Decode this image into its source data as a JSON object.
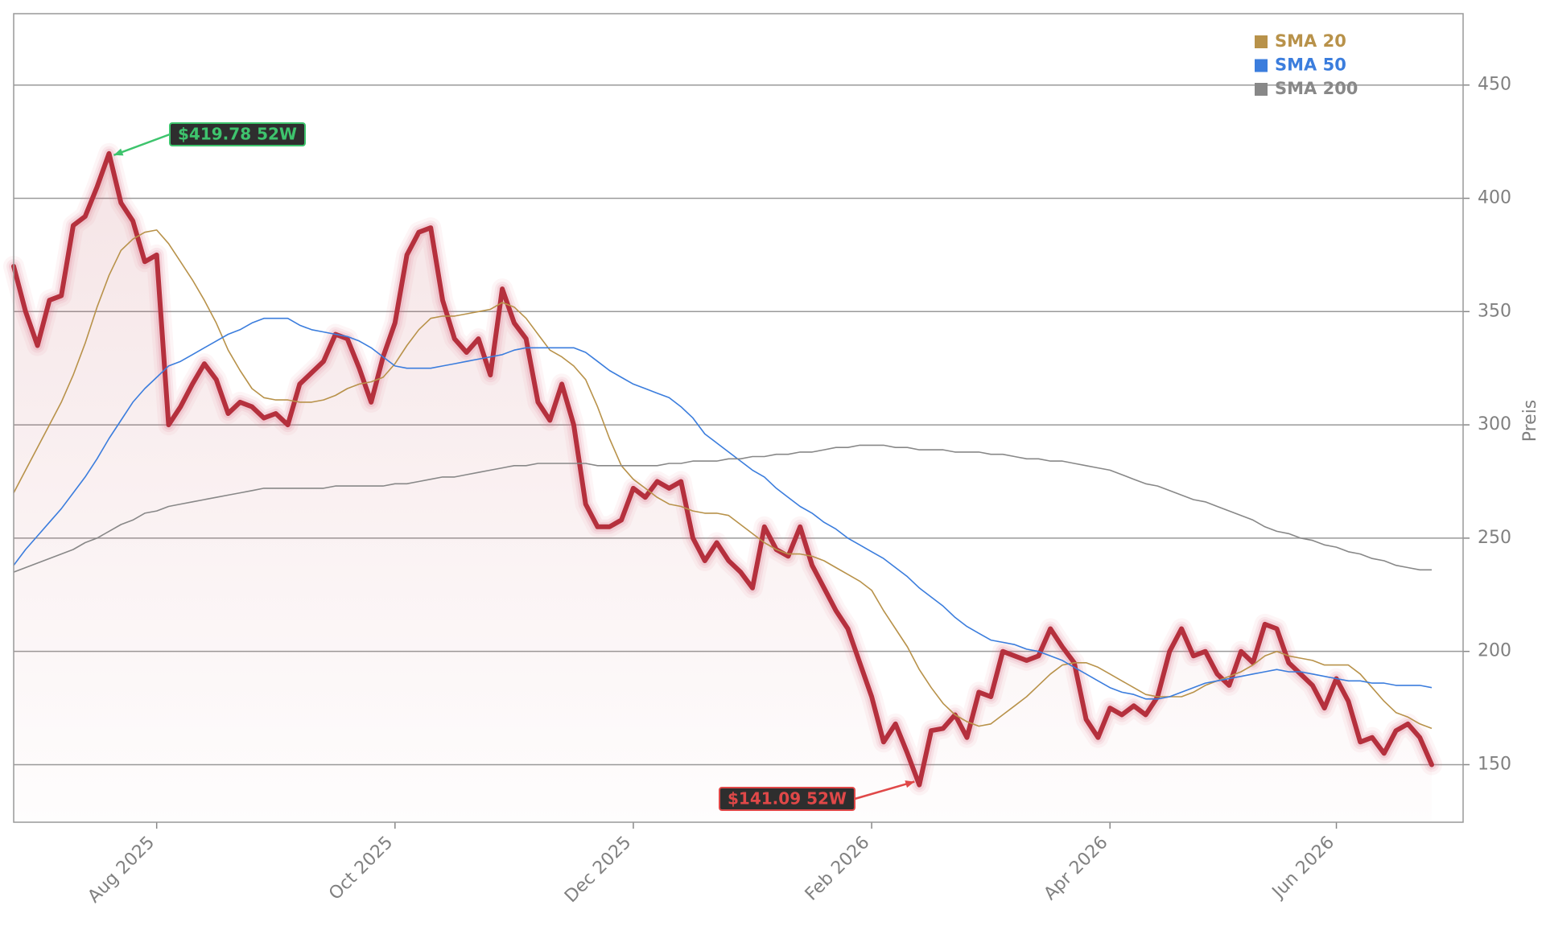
{
  "chart_data": {
    "type": "line",
    "y_label": "Preis",
    "categories": [
      null,
      null,
      null,
      null,
      null,
      null,
      null,
      null,
      null,
      null,
      null,
      null,
      "Aug 2025",
      null,
      null,
      null,
      null,
      null,
      null,
      null,
      null,
      null,
      null,
      null,
      null,
      null,
      null,
      null,
      null,
      null,
      null,
      null,
      "Oct 2025",
      null,
      null,
      null,
      null,
      null,
      null,
      null,
      null,
      null,
      null,
      null,
      null,
      null,
      null,
      null,
      null,
      null,
      null,
      null,
      "Dec 2025",
      null,
      null,
      null,
      null,
      null,
      null,
      null,
      null,
      null,
      null,
      null,
      null,
      null,
      null,
      null,
      null,
      null,
      null,
      null,
      "Feb 2026",
      null,
      null,
      null,
      null,
      null,
      null,
      null,
      null,
      null,
      null,
      null,
      null,
      null,
      null,
      null,
      null,
      null,
      null,
      null,
      "Apr 2026",
      null,
      null,
      null,
      null,
      null,
      null,
      null,
      null,
      null,
      null,
      null,
      null,
      null,
      null,
      null,
      null,
      null,
      null,
      "Jun 2026",
      null,
      null,
      null,
      null,
      null,
      null,
      null,
      null
    ],
    "series": [
      {
        "color": "#b5303d",
        "area": true,
        "values": [
          370,
          350,
          335,
          355,
          357,
          388,
          392,
          405,
          419.78,
          398,
          390,
          372,
          375,
          300,
          308,
          318,
          327,
          320,
          305,
          310,
          308,
          303,
          305,
          300,
          318,
          323,
          328,
          340,
          338,
          325,
          310,
          330,
          345,
          375,
          385,
          387,
          355,
          338,
          332,
          338,
          322,
          360,
          345,
          338,
          310,
          302,
          318,
          300,
          265,
          255,
          255,
          258,
          272,
          268,
          275,
          272,
          275,
          250,
          240,
          248,
          240,
          235,
          228,
          255,
          245,
          242,
          255,
          238,
          228,
          218,
          210,
          195,
          180,
          160,
          168,
          155,
          141.09,
          165,
          166,
          172,
          162,
          182,
          180,
          200,
          198,
          196,
          198,
          210,
          202,
          195,
          170,
          162,
          175,
          172,
          176,
          172,
          180,
          200,
          210,
          198,
          200,
          190,
          185,
          200,
          195,
          212,
          210,
          195,
          190,
          185,
          175,
          188,
          178,
          160,
          162,
          155,
          165,
          168,
          162,
          150
        ]
      },
      {
        "name": "SMA 20",
        "color": "#b8924a",
        "values": [
          270,
          280,
          290,
          300,
          310,
          322,
          336,
          352,
          366,
          377,
          382,
          385,
          386,
          380,
          372,
          364,
          355,
          345,
          333,
          324,
          316,
          312,
          311,
          311,
          310,
          310,
          311,
          313,
          316,
          318,
          319,
          321,
          327,
          335,
          342,
          347,
          348,
          348,
          349,
          350,
          351,
          354,
          352,
          347,
          340,
          333,
          330,
          326,
          320,
          308,
          294,
          282,
          276,
          272,
          268,
          265,
          264,
          262,
          261,
          261,
          260,
          256,
          252,
          248,
          245,
          243,
          243,
          242,
          240,
          237,
          234,
          231,
          227,
          218,
          210,
          202,
          192,
          184,
          177,
          172,
          169,
          167,
          168,
          172,
          176,
          180,
          185,
          190,
          194,
          195,
          195,
          193,
          190,
          187,
          184,
          181,
          180,
          180,
          180,
          182,
          185,
          187,
          189,
          191,
          194,
          198,
          200,
          198,
          197,
          196,
          194,
          194,
          194,
          190,
          184,
          178,
          173,
          171,
          168,
          166
        ]
      },
      {
        "name": "SMA 50",
        "color": "#3b7ddd",
        "values": [
          238,
          245,
          251,
          257,
          263,
          270,
          277,
          285,
          294,
          302,
          310,
          316,
          321,
          326,
          328,
          331,
          334,
          337,
          340,
          342,
          345,
          347,
          347,
          347,
          344,
          342,
          341,
          340,
          339,
          337,
          334,
          330,
          326,
          325,
          325,
          325,
          326,
          327,
          328,
          329,
          330,
          331,
          333,
          334,
          334,
          334,
          334,
          334,
          332,
          328,
          324,
          321,
          318,
          316,
          314,
          312,
          308,
          303,
          296,
          292,
          288,
          284,
          280,
          277,
          272,
          268,
          264,
          261,
          257,
          254,
          250,
          247,
          244,
          241,
          237,
          233,
          228,
          224,
          220,
          215,
          211,
          208,
          205,
          204,
          203,
          201,
          200,
          198,
          196,
          193,
          190,
          187,
          184,
          182,
          181,
          179,
          179,
          180,
          182,
          184,
          186,
          187,
          188,
          189,
          190,
          191,
          192,
          191,
          191,
          190,
          189,
          188,
          187,
          187,
          186,
          186,
          185,
          185,
          185,
          184
        ]
      },
      {
        "name": "SMA 200",
        "color": "#888888",
        "values": [
          235,
          237,
          239,
          241,
          243,
          245,
          248,
          250,
          253,
          256,
          258,
          261,
          262,
          264,
          265,
          266,
          267,
          268,
          269,
          270,
          271,
          272,
          272,
          272,
          272,
          272,
          272,
          273,
          273,
          273,
          273,
          273,
          274,
          274,
          275,
          276,
          277,
          277,
          278,
          279,
          280,
          281,
          282,
          282,
          283,
          283,
          283,
          283,
          283,
          282,
          282,
          282,
          282,
          282,
          282,
          283,
          283,
          284,
          284,
          284,
          285,
          285,
          286,
          286,
          287,
          287,
          288,
          288,
          289,
          290,
          290,
          291,
          291,
          291,
          290,
          290,
          289,
          289,
          289,
          288,
          288,
          288,
          287,
          287,
          286,
          285,
          285,
          284,
          284,
          283,
          282,
          281,
          280,
          278,
          276,
          274,
          273,
          271,
          269,
          267,
          266,
          264,
          262,
          260,
          258,
          255,
          253,
          252,
          250,
          249,
          247,
          246,
          244,
          243,
          241,
          240,
          238,
          237,
          236,
          236
        ]
      }
    ],
    "ylim": [
      124.6,
      481.5
    ],
    "yticks": [
      150,
      200,
      250,
      300,
      350,
      400,
      450
    ],
    "grid": true,
    "legend": "upper right",
    "annotations": [
      {
        "label": "$419.78 52W",
        "value": 419.78,
        "color": "#3ec46d"
      },
      {
        "label": "$141.09 52W",
        "value": 141.09,
        "color": "#e04848"
      }
    ]
  }
}
